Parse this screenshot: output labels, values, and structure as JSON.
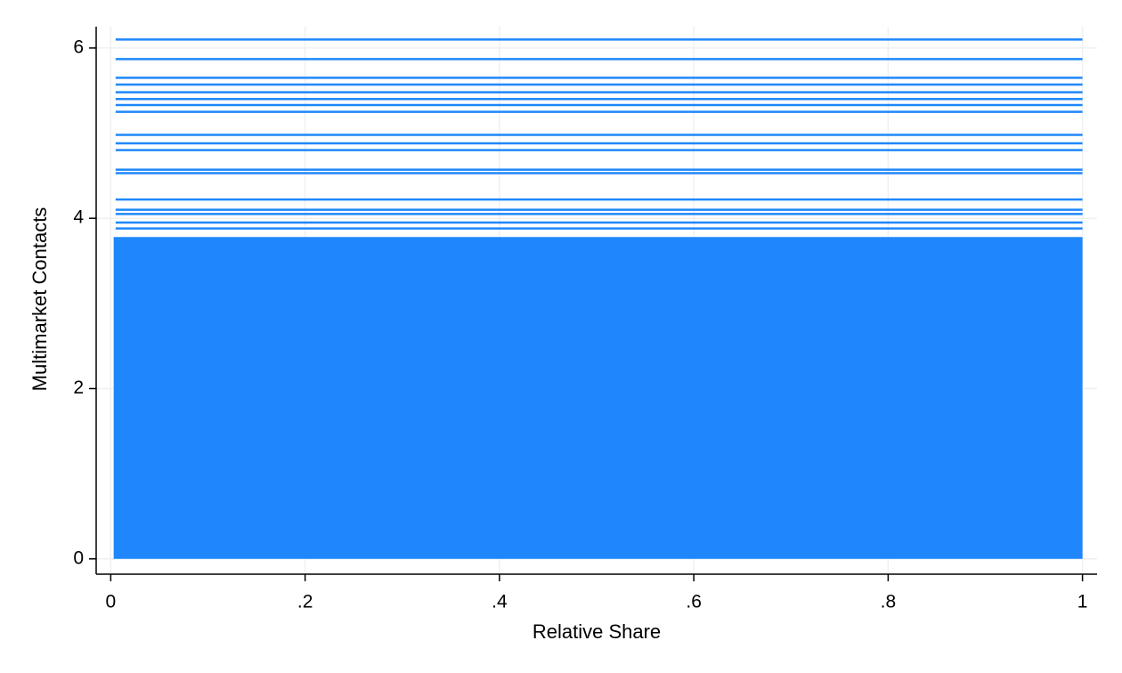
{
  "chart_data": {
    "type": "scatter",
    "x_label": "Relative Share",
    "y_label": "Multimarket Contacts",
    "color": "#1f87fb",
    "dense_region": {
      "x": [
        0.003,
        1
      ],
      "y": [
        0,
        3.78
      ]
    },
    "level_x": [
      0.005,
      1
    ],
    "levels": [
      6.1,
      5.87,
      5.65,
      5.57,
      5.48,
      5.4,
      5.33,
      5.25,
      4.98,
      4.88,
      4.8,
      4.57,
      4.53,
      4.22,
      4.1,
      4.05,
      3.95,
      3.88
    ],
    "xlim": [
      -0.015,
      1.015
    ],
    "ylim": [
      -0.18,
      6.25
    ],
    "xticks": [
      0,
      {
        "value": 0.2,
        "label": ".2"
      },
      {
        "value": 0.4,
        "label": ".4"
      },
      {
        "value": 0.6,
        "label": ".6"
      },
      {
        "value": 0.8,
        "label": ".8"
      },
      1
    ],
    "yticks": [
      0,
      2,
      4,
      6
    ],
    "grid": true
  }
}
